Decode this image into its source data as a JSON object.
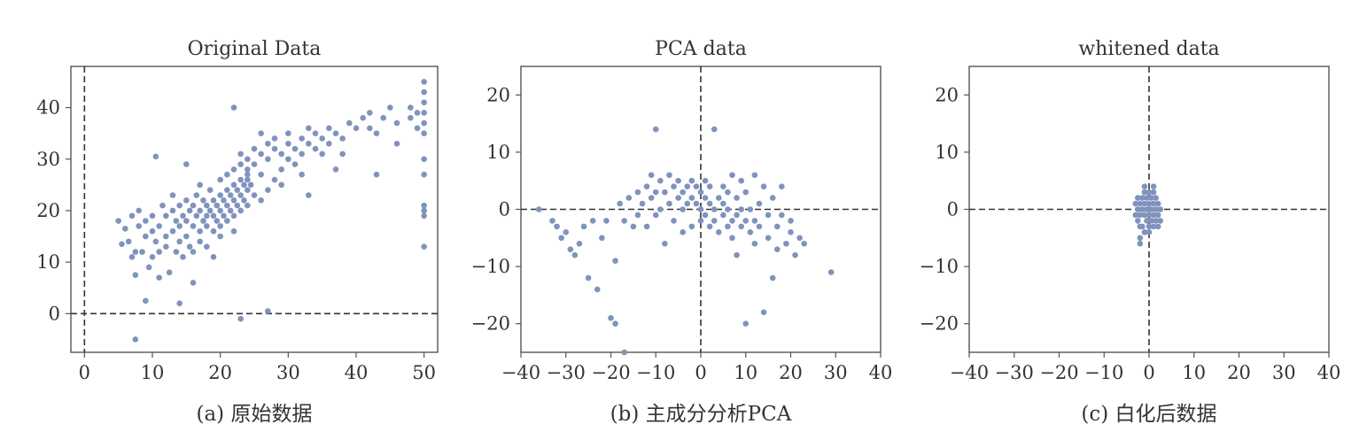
{
  "colors": {
    "points": "#7f93bd",
    "axes": "#555555",
    "zero_lines": "#333333",
    "text": "#333333"
  },
  "chart_data": [
    {
      "id": "original",
      "type": "scatter",
      "title": "Original Data",
      "caption": "(a) 原始数据",
      "xlim": [
        -2,
        52
      ],
      "ylim": [
        -7.5,
        48
      ],
      "x_ticks": [
        0,
        10,
        20,
        30,
        40,
        50
      ],
      "y_ticks": [
        0,
        10,
        20,
        30,
        40
      ],
      "zero_lines": true,
      "grid": false,
      "points": [
        [
          5,
          18
        ],
        [
          5.5,
          13.5
        ],
        [
          6,
          16.5
        ],
        [
          6.5,
          14
        ],
        [
          7,
          11
        ],
        [
          7,
          19
        ],
        [
          7.5,
          7.5
        ],
        [
          7.5,
          12
        ],
        [
          7.5,
          -5
        ],
        [
          8,
          20
        ],
        [
          8,
          17
        ],
        [
          8.5,
          12
        ],
        [
          9,
          15
        ],
        [
          9,
          18
        ],
        [
          9,
          2.5
        ],
        [
          9.5,
          9
        ],
        [
          10,
          11
        ],
        [
          10,
          16
        ],
        [
          10,
          19
        ],
        [
          10.5,
          14
        ],
        [
          10.5,
          30.5
        ],
        [
          11,
          12
        ],
        [
          11,
          17
        ],
        [
          11,
          7
        ],
        [
          11.5,
          21
        ],
        [
          12,
          15
        ],
        [
          12,
          19
        ],
        [
          12,
          13
        ],
        [
          12.5,
          8
        ],
        [
          13,
          16
        ],
        [
          13,
          20
        ],
        [
          13,
          23
        ],
        [
          13.5,
          12
        ],
        [
          13.5,
          18
        ],
        [
          14,
          14
        ],
        [
          14,
          21
        ],
        [
          14,
          17
        ],
        [
          14,
          2
        ],
        [
          14.5,
          19
        ],
        [
          14.5,
          11
        ],
        [
          15,
          15
        ],
        [
          15,
          22
        ],
        [
          15,
          18
        ],
        [
          15,
          29
        ],
        [
          15.5,
          20
        ],
        [
          15.5,
          13
        ],
        [
          16,
          17
        ],
        [
          16,
          21
        ],
        [
          16,
          12
        ],
        [
          16,
          6
        ],
        [
          16.5,
          19
        ],
        [
          16.5,
          23
        ],
        [
          17,
          16
        ],
        [
          17,
          20
        ],
        [
          17,
          14
        ],
        [
          17,
          25
        ],
        [
          17.5,
          18
        ],
        [
          17.5,
          22
        ],
        [
          18,
          17
        ],
        [
          18,
          21
        ],
        [
          18,
          19
        ],
        [
          18,
          13
        ],
        [
          18.5,
          20
        ],
        [
          18.5,
          24
        ],
        [
          19,
          16
        ],
        [
          19,
          19
        ],
        [
          19,
          22
        ],
        [
          19,
          11
        ],
        [
          19.5,
          21
        ],
        [
          19.5,
          18
        ],
        [
          20,
          20
        ],
        [
          20,
          17
        ],
        [
          20,
          23
        ],
        [
          20,
          26
        ],
        [
          20,
          15
        ],
        [
          20.5,
          22
        ],
        [
          20.5,
          19
        ],
        [
          21,
          21
        ],
        [
          21,
          24
        ],
        [
          21,
          18
        ],
        [
          21,
          27
        ],
        [
          21.5,
          23
        ],
        [
          21.5,
          20
        ],
        [
          22,
          22
        ],
        [
          22,
          25
        ],
        [
          22,
          19
        ],
        [
          22,
          28
        ],
        [
          22,
          40
        ],
        [
          22,
          16
        ],
        [
          22.5,
          24
        ],
        [
          22.5,
          21
        ],
        [
          23,
          23
        ],
        [
          23,
          26
        ],
        [
          23,
          20
        ],
        [
          23,
          29
        ],
        [
          23,
          -1
        ],
        [
          23,
          31
        ],
        [
          23.5,
          25
        ],
        [
          23.5,
          22
        ],
        [
          24,
          24
        ],
        [
          24,
          27
        ],
        [
          24,
          21
        ],
        [
          24,
          30
        ],
        [
          24,
          28
        ],
        [
          24,
          26
        ],
        [
          24.5,
          25
        ],
        [
          25,
          32
        ],
        [
          25,
          29
        ],
        [
          25,
          23
        ],
        [
          26,
          31
        ],
        [
          26,
          35
        ],
        [
          26,
          22
        ],
        [
          26,
          27
        ],
        [
          27,
          33
        ],
        [
          27,
          30
        ],
        [
          27,
          24
        ],
        [
          27,
          0.5
        ],
        [
          28,
          32
        ],
        [
          28,
          34
        ],
        [
          28,
          26
        ],
        [
          29,
          31
        ],
        [
          29,
          28
        ],
        [
          29,
          25
        ],
        [
          30,
          33
        ],
        [
          30,
          30
        ],
        [
          30,
          35
        ],
        [
          31,
          32
        ],
        [
          31,
          29
        ],
        [
          32,
          34
        ],
        [
          32,
          31
        ],
        [
          32,
          27
        ],
        [
          33,
          33
        ],
        [
          33,
          36
        ],
        [
          33,
          23
        ],
        [
          34,
          35
        ],
        [
          34,
          32
        ],
        [
          35,
          34
        ],
        [
          35,
          31
        ],
        [
          36,
          36
        ],
        [
          36,
          33
        ],
        [
          37,
          35
        ],
        [
          37,
          28
        ],
        [
          38,
          34
        ],
        [
          38,
          31
        ],
        [
          39,
          37
        ],
        [
          40,
          36
        ],
        [
          41,
          38
        ],
        [
          42,
          36
        ],
        [
          42,
          39
        ],
        [
          43,
          35
        ],
        [
          43,
          27
        ],
        [
          44,
          38
        ],
        [
          45,
          40
        ],
        [
          46,
          37
        ],
        [
          46,
          33
        ],
        [
          48,
          40
        ],
        [
          48,
          38
        ],
        [
          49,
          39
        ],
        [
          49,
          36
        ],
        [
          50,
          45
        ],
        [
          50,
          43
        ],
        [
          50,
          41
        ],
        [
          50,
          39
        ],
        [
          50,
          37
        ],
        [
          50,
          35
        ],
        [
          50,
          30
        ],
        [
          50,
          27
        ],
        [
          50,
          21
        ],
        [
          50,
          20
        ],
        [
          50,
          19
        ],
        [
          50,
          13
        ]
      ]
    },
    {
      "id": "pca",
      "type": "scatter",
      "title": "PCA data",
      "caption": "(b) 主成分分析PCA",
      "xlim": [
        -40,
        40
      ],
      "ylim": [
        -25,
        25
      ],
      "x_ticks": [
        -40,
        -30,
        -20,
        -10,
        0,
        10,
        20,
        30,
        40
      ],
      "y_ticks": [
        -20,
        -10,
        0,
        10,
        20
      ],
      "zero_lines": true,
      "grid": false,
      "points": [
        [
          -36,
          0
        ],
        [
          -33,
          -2
        ],
        [
          -32,
          -3
        ],
        [
          -31,
          -5
        ],
        [
          -30,
          -4
        ],
        [
          -29,
          -7
        ],
        [
          -28,
          -8
        ],
        [
          -27,
          -6
        ],
        [
          -26,
          -3
        ],
        [
          -25,
          -12
        ],
        [
          -24,
          -2
        ],
        [
          -23,
          -14
        ],
        [
          -22,
          -5
        ],
        [
          -21,
          -2
        ],
        [
          -20,
          -19
        ],
        [
          -19,
          -20
        ],
        [
          -19,
          -9
        ],
        [
          -18,
          1
        ],
        [
          -17,
          -2
        ],
        [
          -16,
          2
        ],
        [
          -15,
          -3
        ],
        [
          -14,
          3
        ],
        [
          -14,
          -1
        ],
        [
          -13,
          1
        ],
        [
          -12,
          4
        ],
        [
          -12,
          -3
        ],
        [
          -11,
          2
        ],
        [
          -11,
          6
        ],
        [
          -10,
          14
        ],
        [
          -10,
          3
        ],
        [
          -10,
          -1
        ],
        [
          -9,
          5
        ],
        [
          -9,
          0
        ],
        [
          -8,
          3
        ],
        [
          -8,
          -6
        ],
        [
          -7,
          1
        ],
        [
          -7,
          6
        ],
        [
          -6,
          4
        ],
        [
          -6,
          -2
        ],
        [
          -5,
          2
        ],
        [
          -5,
          5
        ],
        [
          -4,
          3
        ],
        [
          -4,
          0
        ],
        [
          -4,
          -4
        ],
        [
          -3,
          4
        ],
        [
          -3,
          1
        ],
        [
          -2,
          -3
        ],
        [
          -2,
          2
        ],
        [
          -2,
          5
        ],
        [
          -1,
          1
        ],
        [
          -1,
          4
        ],
        [
          0,
          0
        ],
        [
          0,
          3
        ],
        [
          0,
          -2
        ],
        [
          1,
          2
        ],
        [
          1,
          -1
        ],
        [
          1,
          5
        ],
        [
          2,
          1
        ],
        [
          2,
          -3
        ],
        [
          2,
          4
        ],
        [
          3,
          0
        ],
        [
          3,
          14
        ],
        [
          3,
          -2
        ],
        [
          4,
          2
        ],
        [
          4,
          -4
        ],
        [
          5,
          1
        ],
        [
          5,
          -1
        ],
        [
          5,
          4
        ],
        [
          6,
          -3
        ],
        [
          6,
          0
        ],
        [
          6,
          3
        ],
        [
          7,
          -2
        ],
        [
          7,
          6
        ],
        [
          7,
          -5
        ],
        [
          8,
          -1
        ],
        [
          8,
          2
        ],
        [
          8,
          -8
        ],
        [
          9,
          -3
        ],
        [
          9,
          0
        ],
        [
          9,
          5
        ],
        [
          10,
          -2
        ],
        [
          10,
          -20
        ],
        [
          10,
          3
        ],
        [
          11,
          -4
        ],
        [
          11,
          0
        ],
        [
          12,
          -2
        ],
        [
          12,
          6
        ],
        [
          12,
          -6
        ],
        [
          13,
          1
        ],
        [
          13,
          -3
        ],
        [
          14,
          -18
        ],
        [
          14,
          4
        ],
        [
          15,
          -1
        ],
        [
          15,
          -5
        ],
        [
          16,
          -12
        ],
        [
          16,
          2
        ],
        [
          17,
          -3
        ],
        [
          17,
          -7
        ],
        [
          18,
          -1
        ],
        [
          18,
          4
        ],
        [
          19,
          -6
        ],
        [
          20,
          -2
        ],
        [
          20,
          -4
        ],
        [
          21,
          -8
        ],
        [
          22,
          -5
        ],
        [
          23,
          -6
        ],
        [
          29,
          -11
        ],
        [
          -17,
          -25
        ]
      ]
    },
    {
      "id": "whitened",
      "type": "scatter",
      "title": "whitened data",
      "caption": "(c) 白化后数据",
      "xlim": [
        -40,
        40
      ],
      "ylim": [
        -25,
        25
      ],
      "x_ticks": [
        -40,
        -30,
        -20,
        -10,
        0,
        10,
        20,
        30,
        40
      ],
      "y_ticks": [
        -20,
        -10,
        0,
        10,
        20
      ],
      "zero_lines": true,
      "grid": false,
      "points": [
        [
          -3,
          -1
        ],
        [
          -3,
          1
        ],
        [
          -2.5,
          0
        ],
        [
          -2.5,
          -2
        ],
        [
          -2.5,
          2
        ],
        [
          -2,
          -3
        ],
        [
          -2,
          -1
        ],
        [
          -2,
          1
        ],
        [
          -2,
          -5
        ],
        [
          -2,
          -6
        ],
        [
          -1.5,
          0
        ],
        [
          -1.5,
          2
        ],
        [
          -1.5,
          -3
        ],
        [
          -1,
          -1
        ],
        [
          -1,
          1
        ],
        [
          -1,
          3
        ],
        [
          -1,
          -4
        ],
        [
          -0.5,
          0
        ],
        [
          -0.5,
          2
        ],
        [
          -0.5,
          -2
        ],
        [
          0,
          -1
        ],
        [
          0,
          1
        ],
        [
          0,
          3
        ],
        [
          0,
          -3
        ],
        [
          0,
          0
        ],
        [
          0.5,
          0
        ],
        [
          0.5,
          2
        ],
        [
          0.5,
          -2
        ],
        [
          1,
          -1
        ],
        [
          1,
          1
        ],
        [
          1,
          3
        ],
        [
          1,
          -3
        ],
        [
          1.5,
          0
        ],
        [
          1.5,
          -2
        ],
        [
          1.5,
          2
        ],
        [
          2,
          -1
        ],
        [
          2,
          1
        ],
        [
          2,
          -3
        ],
        [
          2.5,
          0
        ],
        [
          2.5,
          -2
        ],
        [
          -1,
          4
        ],
        [
          0,
          -4
        ],
        [
          1,
          4
        ]
      ]
    }
  ]
}
